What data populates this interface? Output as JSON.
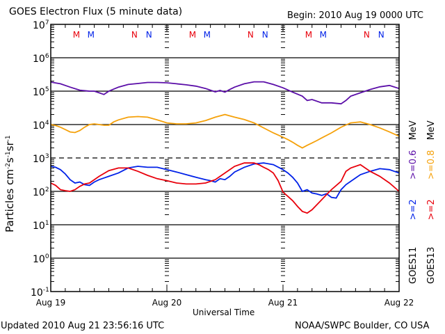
{
  "chart_data": {
    "type": "line",
    "title": "GOES Electron Flux (5 minute data)",
    "begin_label": "Begin: 2010 Aug 19 0000 UTC",
    "xlabel": "Universal Time",
    "ylabel": "Particles cm-2s-1sr-1",
    "ylabel_parts": {
      "base": "Particles cm",
      "exp1": "-2",
      "mid1": "s",
      "exp2": "-1",
      "mid2": "sr",
      "exp3": "-1"
    },
    "yscale": "log",
    "ylim": [
      -1,
      7
    ],
    "xlim_hours": [
      0,
      72
    ],
    "y_ticks": [
      {
        "base": "10",
        "exp": "7",
        "value": 7
      },
      {
        "base": "10",
        "exp": "6",
        "value": 6
      },
      {
        "base": "10",
        "exp": "5",
        "value": 5
      },
      {
        "base": "10",
        "exp": "4",
        "value": 4
      },
      {
        "base": "10",
        "exp": "3",
        "value": 3
      },
      {
        "base": "10",
        "exp": "2",
        "value": 2
      },
      {
        "base": "10",
        "exp": "1",
        "value": 1
      },
      {
        "base": "10",
        "exp": "0",
        "value": 0
      },
      {
        "base": "10",
        "exp": "-1",
        "value": -1
      }
    ],
    "x_ticks": [
      {
        "label": "Aug 19",
        "hour": 0
      },
      {
        "label": "Aug 20",
        "hour": 24
      },
      {
        "label": "Aug 21",
        "hour": 48
      },
      {
        "label": "Aug 22",
        "hour": 72
      }
    ],
    "threshold_line": {
      "value_log10": 3,
      "style": "dashed"
    },
    "grid_lines_log10": [
      6,
      5,
      4,
      2,
      1,
      0
    ],
    "local_time_markers": [
      {
        "label": "M",
        "hour": 5.3,
        "color": "#e8000b"
      },
      {
        "label": "M",
        "hour": 8.3,
        "color": "#0021e8"
      },
      {
        "label": "N",
        "hour": 17.3,
        "color": "#e8000b"
      },
      {
        "label": "N",
        "hour": 20.3,
        "color": "#0021e8"
      },
      {
        "label": "M",
        "hour": 29.3,
        "color": "#e8000b"
      },
      {
        "label": "M",
        "hour": 32.3,
        "color": "#0021e8"
      },
      {
        "label": "N",
        "hour": 41.3,
        "color": "#e8000b"
      },
      {
        "label": "N",
        "hour": 44.3,
        "color": "#0021e8"
      },
      {
        "label": "M",
        "hour": 53.3,
        "color": "#e8000b"
      },
      {
        "label": "M",
        "hour": 56.3,
        "color": "#0021e8"
      },
      {
        "label": "N",
        "hour": 65.3,
        "color": "#e8000b"
      },
      {
        "label": "N",
        "hour": 68.3,
        "color": "#0021e8"
      }
    ],
    "series": [
      {
        "name": "GOES11 >=0.6 MeV",
        "color": "#5b0ea8",
        "x_hours": [
          0,
          2,
          4,
          6,
          8,
          9,
          10,
          11,
          12,
          13,
          14,
          16,
          18,
          20,
          22,
          24,
          26,
          28,
          30,
          32,
          33,
          34,
          35,
          36,
          37,
          38,
          40,
          42,
          44,
          46,
          48,
          50,
          52,
          53,
          54,
          56,
          58,
          60,
          61,
          62,
          64,
          66,
          68,
          70,
          72
        ],
        "log10_values": [
          5.27,
          5.22,
          5.12,
          5.03,
          5.0,
          5.0,
          4.95,
          4.9,
          5.0,
          5.06,
          5.12,
          5.2,
          5.23,
          5.26,
          5.26,
          5.25,
          5.22,
          5.19,
          5.15,
          5.08,
          5.03,
          4.98,
          5.02,
          4.97,
          5.05,
          5.12,
          5.22,
          5.28,
          5.28,
          5.2,
          5.1,
          4.97,
          4.85,
          4.72,
          4.75,
          4.65,
          4.65,
          4.62,
          4.72,
          4.85,
          4.95,
          5.05,
          5.13,
          5.17,
          5.08
        ]
      },
      {
        "name": "GOES13 >=0.8 MeV",
        "color": "#f5a10a",
        "x_hours": [
          0,
          1,
          2,
          3,
          4,
          5,
          6,
          7,
          8,
          9,
          10,
          11,
          12,
          13,
          14,
          16,
          18,
          20,
          22,
          24,
          26,
          28,
          30,
          32,
          34,
          36,
          38,
          40,
          42,
          44,
          46,
          48,
          49,
          50,
          51,
          52,
          53,
          54,
          55,
          56,
          58,
          60,
          62,
          64,
          66,
          68,
          70,
          72
        ],
        "log10_values": [
          4.0,
          3.97,
          3.92,
          3.85,
          3.78,
          3.76,
          3.82,
          3.92,
          4.0,
          4.02,
          4.0,
          3.98,
          3.98,
          4.08,
          4.14,
          4.22,
          4.24,
          4.22,
          4.14,
          4.05,
          4.02,
          4.02,
          4.05,
          4.12,
          4.22,
          4.3,
          4.22,
          4.15,
          4.05,
          3.9,
          3.75,
          3.62,
          3.55,
          3.47,
          3.38,
          3.3,
          3.38,
          3.45,
          3.52,
          3.6,
          3.75,
          3.92,
          4.05,
          4.08,
          4.0,
          3.9,
          3.78,
          3.65
        ]
      },
      {
        "name": "GOES11 >=2 MeV",
        "color": "#0021e8",
        "x_hours": [
          0,
          1,
          2,
          3,
          4,
          5,
          6,
          7,
          8,
          9,
          10,
          11,
          12,
          14,
          16,
          18,
          20,
          22,
          24,
          26,
          28,
          30,
          32,
          33,
          34,
          35,
          36,
          37,
          38,
          40,
          42,
          44,
          46,
          48,
          49,
          50,
          51,
          52,
          53,
          54,
          55,
          56,
          57,
          58,
          59,
          60,
          61,
          62,
          64,
          66,
          68,
          70,
          71,
          72
        ],
        "log10_values": [
          2.75,
          2.72,
          2.65,
          2.52,
          2.35,
          2.25,
          2.28,
          2.2,
          2.18,
          2.28,
          2.35,
          2.4,
          2.45,
          2.55,
          2.7,
          2.75,
          2.72,
          2.72,
          2.65,
          2.58,
          2.5,
          2.42,
          2.35,
          2.32,
          2.28,
          2.38,
          2.35,
          2.45,
          2.58,
          2.72,
          2.82,
          2.85,
          2.8,
          2.65,
          2.55,
          2.42,
          2.25,
          2.0,
          2.05,
          1.95,
          1.92,
          1.88,
          1.93,
          1.82,
          1.8,
          2.05,
          2.2,
          2.3,
          2.5,
          2.6,
          2.68,
          2.65,
          2.6,
          2.55
        ]
      },
      {
        "name": "GOES13 >=2 MeV",
        "color": "#e8000b",
        "x_hours": [
          0,
          1,
          2,
          3,
          4,
          5,
          6,
          7,
          8,
          9,
          10,
          12,
          14,
          16,
          18,
          20,
          22,
          24,
          26,
          28,
          30,
          32,
          33,
          34,
          36,
          38,
          40,
          42,
          43,
          44,
          45,
          46,
          47,
          48,
          49,
          50,
          51,
          52,
          53,
          54,
          55,
          56,
          57,
          58,
          60,
          61,
          62,
          64,
          66,
          68,
          70,
          72
        ],
        "log10_values": [
          2.25,
          2.18,
          2.05,
          2.02,
          2.0,
          2.05,
          2.15,
          2.22,
          2.25,
          2.35,
          2.45,
          2.62,
          2.7,
          2.7,
          2.6,
          2.48,
          2.38,
          2.32,
          2.25,
          2.22,
          2.22,
          2.25,
          2.3,
          2.35,
          2.55,
          2.75,
          2.85,
          2.85,
          2.8,
          2.72,
          2.65,
          2.55,
          2.32,
          1.98,
          1.85,
          1.72,
          1.55,
          1.4,
          1.35,
          1.45,
          1.6,
          1.75,
          1.9,
          2.05,
          2.3,
          2.6,
          2.7,
          2.8,
          2.6,
          2.45,
          2.25,
          2.0
        ]
      }
    ],
    "legend_right": [
      {
        "col": "GOES11",
        "items": [
          {
            "text": ">=2",
            "color": "#0021e8"
          },
          {
            "text": ">=0.6",
            "color": "#5b0ea8"
          }
        ],
        "unit": "MeV"
      },
      {
        "col": "GOES13",
        "items": [
          {
            "text": ">=2",
            "color": "#e8000b"
          },
          {
            "text": ">=0.8",
            "color": "#f5a10a"
          }
        ],
        "unit": "MeV"
      }
    ]
  },
  "footer": {
    "updated": "Updated 2010 Aug 21 23:56:16 UTC",
    "source": "NOAA/SWPC Boulder, CO USA"
  }
}
